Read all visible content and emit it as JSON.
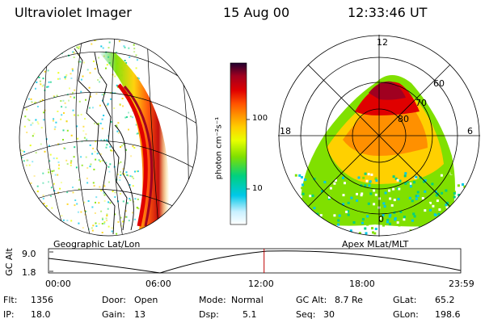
{
  "header": {
    "instrument": "Ultraviolet Imager",
    "date": "15 Aug 00",
    "time": "12:33:46 UT"
  },
  "left_map": {
    "caption": "Geographic Lat/Lon"
  },
  "colorbar": {
    "unit_label": "photon cm⁻²s⁻¹",
    "ticks": [
      "100",
      "10"
    ],
    "scale": "log",
    "colors": [
      "#ffffff",
      "#c8f0ff",
      "#00c8e8",
      "#00d080",
      "#80e000",
      "#e8ff00",
      "#ffd000",
      "#ff9000",
      "#ff5000",
      "#e00000",
      "#a00020",
      "#200030"
    ]
  },
  "right_map": {
    "caption": "Apex MLat/MLT",
    "mlt_labels": [
      "12",
      "18",
      "6",
      "0"
    ],
    "mlat_labels": [
      "60",
      "70",
      "80"
    ]
  },
  "altitude_plot": {
    "ylabel": "GC Alt",
    "yticks": [
      "9.0",
      "1.8"
    ],
    "xticks": [
      "00:00",
      "06:00",
      "12:00",
      "18:00",
      "23:59"
    ],
    "marker_time_fraction": 0.523
  },
  "info": {
    "flt_label": "Flt:",
    "flt_value": "1356",
    "ip_label": "IP:",
    "ip_value": "18.0",
    "door_label": "Door:",
    "door_value": "Open",
    "gain_label": "Gain:",
    "gain_value": "13",
    "mode_label": "Mode:",
    "mode_value": "Normal",
    "dsp_label": "Dsp:",
    "dsp_value": "5.1",
    "gcalt_label": "GC Alt:",
    "gcalt_value": "8.7 Re",
    "seq_label": "Seq:",
    "seq_value": "30",
    "glat_label": "GLat:",
    "glat_value": "65.2",
    "glon_label": "GLon:",
    "glon_value": "198.6"
  }
}
